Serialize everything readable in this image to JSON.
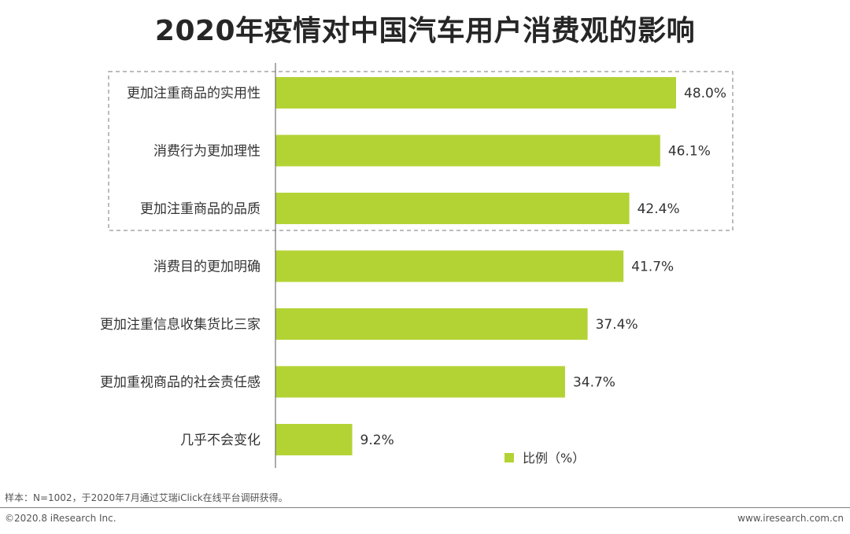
{
  "title": "2020年疫情对中国汽车用户消费观的影响",
  "chart_data": {
    "type": "bar",
    "orientation": "horizontal",
    "categories": [
      "更加注重商品的实用性",
      "消费行为更加理性",
      "更加注重商品的品质",
      "消费目的更加明确",
      "更加注重信息收集货比三家",
      "更加重视商品的社会责任感",
      "几乎不会变化"
    ],
    "series": [
      {
        "name": "比例（%）",
        "values": [
          48.0,
          46.1,
          42.4,
          41.7,
          37.4,
          34.7,
          9.2
        ],
        "labels": [
          "48.0%",
          "46.1%",
          "42.4%",
          "41.7%",
          "37.4%",
          "34.7%",
          "9.2%"
        ]
      }
    ],
    "xlim": [
      0,
      50
    ],
    "highlighted_categories": [
      0,
      1,
      2
    ],
    "grid": false,
    "legend_position": "bottom-right",
    "bar_color": "#b3d335"
  },
  "footer": {
    "note": "样本：N=1002，于2020年7月通过艾瑞iClick在线平台调研获得。",
    "copyright": "©2020.8 iResearch Inc.",
    "website": "www.iresearch.com.cn"
  }
}
